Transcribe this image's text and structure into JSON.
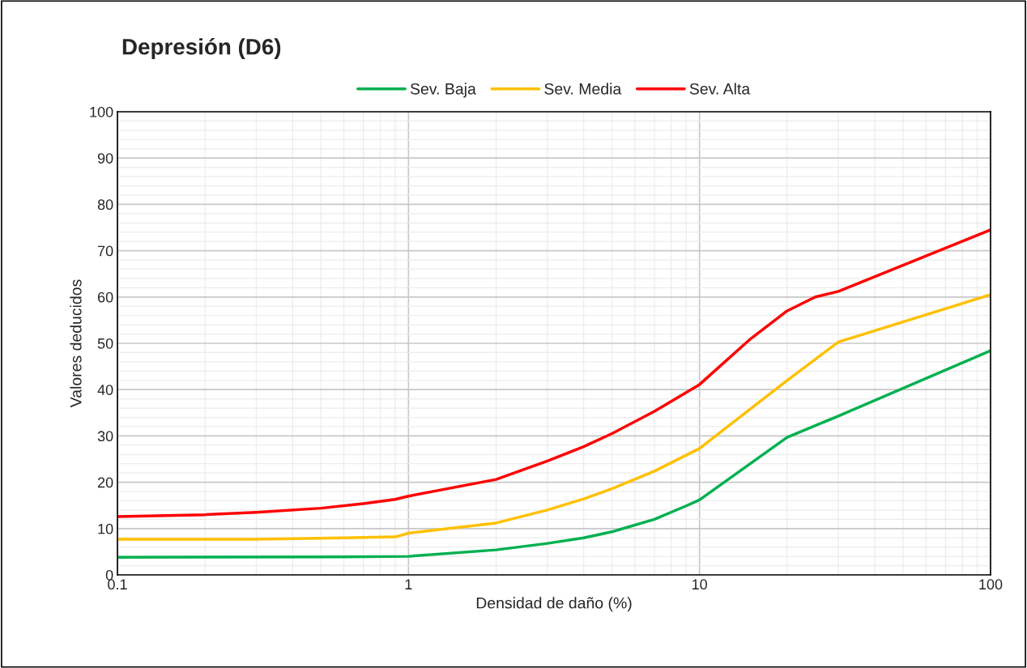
{
  "chart_data": {
    "type": "line",
    "title": "Depresión (D6)",
    "xlabel": "Densidad de daño (%)",
    "ylabel": "Valores deducidos",
    "log": "x",
    "xlim": [
      0.1,
      100
    ],
    "xticks": [
      0.1,
      1,
      10,
      100
    ],
    "ylim": [
      0,
      100
    ],
    "yticks": [
      0,
      10,
      20,
      30,
      40,
      50,
      60,
      70,
      80,
      90,
      100
    ],
    "grid": true,
    "legend": "top",
    "marker": "none",
    "line_style": "solid",
    "series": [
      {
        "name": "Sev. Baja",
        "color": "#00b050",
        "x": [
          0.1,
          0.6,
          1,
          2,
          3,
          4,
          5,
          7,
          9,
          10,
          20,
          30,
          100
        ],
        "values": [
          3.8,
          3.9,
          4.0,
          5.4,
          6.8,
          8.0,
          9.3,
          12.0,
          14.9,
          16.2,
          29.7,
          34.3,
          48.4
        ]
      },
      {
        "name": "Sev. Media",
        "color": "#ffc000",
        "x": [
          0.1,
          0.3,
          0.6,
          0.9,
          1,
          2,
          3,
          4,
          5,
          7,
          10,
          20,
          30,
          100
        ],
        "values": [
          7.7,
          7.7,
          8.0,
          8.2,
          9.0,
          11.2,
          14.0,
          16.4,
          18.6,
          22.4,
          27.3,
          42.0,
          50.3,
          60.5
        ]
      },
      {
        "name": "Sev. Alta",
        "color": "#ff0000",
        "x": [
          0.1,
          0.2,
          0.3,
          0.5,
          0.7,
          0.9,
          1,
          2,
          3,
          4,
          5,
          7,
          10,
          15,
          20,
          25,
          30,
          100
        ],
        "values": [
          12.6,
          13.0,
          13.5,
          14.4,
          15.4,
          16.3,
          17.0,
          20.6,
          24.6,
          27.7,
          30.5,
          35.3,
          41.1,
          51.0,
          57.0,
          60.0,
          61.2,
          74.5
        ]
      }
    ]
  }
}
